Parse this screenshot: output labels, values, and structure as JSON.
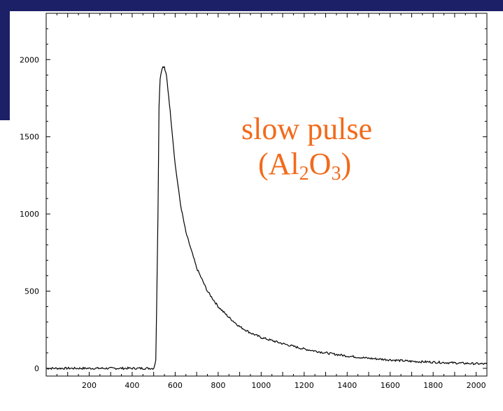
{
  "chart_data": {
    "type": "line",
    "title": "",
    "xlabel": "",
    "ylabel": "",
    "xlim": [
      0,
      2050
    ],
    "ylim": [
      -50,
      2300
    ],
    "x_ticks": [
      200,
      400,
      600,
      800,
      1000,
      1200,
      1400,
      1600,
      1800,
      2000
    ],
    "y_ticks": [
      0,
      500,
      1000,
      1500,
      2000
    ],
    "grid": false,
    "annotation": {
      "text_line1": "slow pulse",
      "text_line2_prefix": "(Al",
      "text_line2_sub1": "2",
      "text_line2_mid": "O",
      "text_line2_sub2": "3",
      "text_line2_suffix": ")",
      "color": "#f26a1b"
    },
    "series": [
      {
        "color": "#000000",
        "x": [
          0,
          100,
          200,
          300,
          400,
          500,
          510,
          520,
          525,
          530,
          540,
          550,
          560,
          570,
          580,
          600,
          625,
          650,
          700,
          750,
          800,
          850,
          900,
          950,
          1000,
          1100,
          1200,
          1300,
          1400,
          1500,
          1600,
          1700,
          1800,
          1900,
          2000,
          2050
        ],
        "values": [
          0,
          0,
          0,
          0,
          0,
          0,
          50,
          1000,
          1700,
          1880,
          1950,
          1950,
          1890,
          1760,
          1620,
          1320,
          1060,
          880,
          650,
          500,
          400,
          330,
          270,
          230,
          200,
          160,
          125,
          100,
          80,
          65,
          55,
          45,
          40,
          35,
          30,
          28
        ]
      }
    ]
  }
}
